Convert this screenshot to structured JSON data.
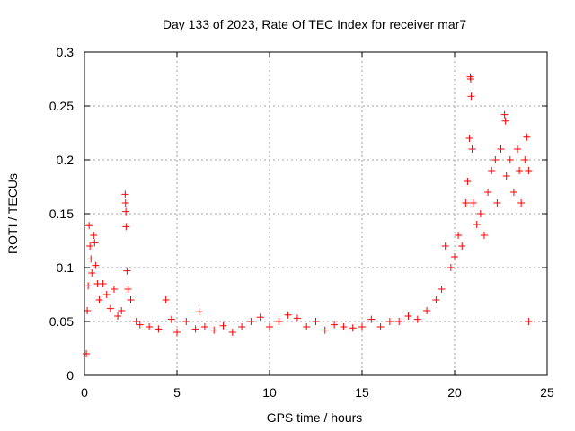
{
  "chart_data": {
    "type": "scatter",
    "title": "Day 133 of 2023, Rate Of TEC Index for receiver mar7",
    "xlabel": "GPS time / hours",
    "ylabel": "ROTI / TECUs",
    "xlim": [
      0,
      25
    ],
    "ylim": [
      0,
      0.3
    ],
    "xticks": [
      0,
      5,
      10,
      15,
      20,
      25
    ],
    "yticks": [
      0,
      0.05,
      0.1,
      0.15,
      0.2,
      0.25,
      0.3
    ],
    "xtick_labels": [
      "0",
      "5",
      "10",
      "15",
      "20",
      "25"
    ],
    "ytick_labels": [
      "0",
      "0.05",
      "0.1",
      "0.15",
      "0.2",
      "0.25",
      "0.3"
    ],
    "grid": true,
    "marker": "+",
    "series": [
      {
        "color": "#ff0000",
        "points": [
          [
            0.1,
            0.02
          ],
          [
            0.15,
            0.06
          ],
          [
            0.2,
            0.083
          ],
          [
            0.25,
            0.139
          ],
          [
            0.3,
            0.12
          ],
          [
            0.35,
            0.108
          ],
          [
            0.4,
            0.095
          ],
          [
            0.5,
            0.13
          ],
          [
            0.55,
            0.123
          ],
          [
            0.6,
            0.102
          ],
          [
            0.7,
            0.085
          ],
          [
            0.8,
            0.07
          ],
          [
            1.0,
            0.085
          ],
          [
            1.2,
            0.075
          ],
          [
            1.4,
            0.062
          ],
          [
            1.6,
            0.08
          ],
          [
            1.8,
            0.055
          ],
          [
            2.0,
            0.06
          ],
          [
            2.2,
            0.168
          ],
          [
            2.22,
            0.16
          ],
          [
            2.24,
            0.152
          ],
          [
            2.25,
            0.138
          ],
          [
            2.3,
            0.097
          ],
          [
            2.35,
            0.08
          ],
          [
            2.5,
            0.07
          ],
          [
            2.8,
            0.05
          ],
          [
            3.0,
            0.047
          ],
          [
            3.5,
            0.045
          ],
          [
            4.0,
            0.043
          ],
          [
            4.4,
            0.07
          ],
          [
            4.7,
            0.052
          ],
          [
            5.0,
            0.04
          ],
          [
            5.5,
            0.05
          ],
          [
            6.0,
            0.043
          ],
          [
            6.2,
            0.059
          ],
          [
            6.5,
            0.045
          ],
          [
            7.0,
            0.042
          ],
          [
            7.5,
            0.046
          ],
          [
            8.0,
            0.04
          ],
          [
            8.5,
            0.045
          ],
          [
            9.0,
            0.05
          ],
          [
            9.5,
            0.054
          ],
          [
            10.0,
            0.045
          ],
          [
            10.5,
            0.05
          ],
          [
            11.0,
            0.056
          ],
          [
            11.5,
            0.053
          ],
          [
            12.0,
            0.045
          ],
          [
            12.5,
            0.05
          ],
          [
            13.0,
            0.042
          ],
          [
            13.5,
            0.047
          ],
          [
            14.0,
            0.045
          ],
          [
            14.5,
            0.044
          ],
          [
            15.0,
            0.045
          ],
          [
            15.5,
            0.052
          ],
          [
            16.0,
            0.045
          ],
          [
            16.5,
            0.05
          ],
          [
            17.0,
            0.05
          ],
          [
            17.5,
            0.055
          ],
          [
            18.0,
            0.052
          ],
          [
            18.5,
            0.06
          ],
          [
            19.0,
            0.07
          ],
          [
            19.3,
            0.08
          ],
          [
            19.5,
            0.12
          ],
          [
            19.8,
            0.1
          ],
          [
            20.0,
            0.11
          ],
          [
            20.2,
            0.13
          ],
          [
            20.4,
            0.12
          ],
          [
            20.6,
            0.16
          ],
          [
            20.7,
            0.18
          ],
          [
            20.8,
            0.22
          ],
          [
            20.85,
            0.277
          ],
          [
            20.87,
            0.275
          ],
          [
            20.9,
            0.259
          ],
          [
            20.95,
            0.21
          ],
          [
            21.0,
            0.16
          ],
          [
            21.2,
            0.14
          ],
          [
            21.4,
            0.15
          ],
          [
            21.6,
            0.13
          ],
          [
            21.8,
            0.17
          ],
          [
            22.0,
            0.19
          ],
          [
            22.2,
            0.2
          ],
          [
            22.3,
            0.16
          ],
          [
            22.5,
            0.21
          ],
          [
            22.7,
            0.242
          ],
          [
            22.75,
            0.236
          ],
          [
            22.8,
            0.185
          ],
          [
            23.0,
            0.2
          ],
          [
            23.2,
            0.17
          ],
          [
            23.4,
            0.21
          ],
          [
            23.5,
            0.19
          ],
          [
            23.6,
            0.16
          ],
          [
            23.8,
            0.2
          ],
          [
            23.9,
            0.221
          ],
          [
            24.0,
            0.19
          ],
          [
            24.0,
            0.05
          ]
        ]
      }
    ]
  }
}
